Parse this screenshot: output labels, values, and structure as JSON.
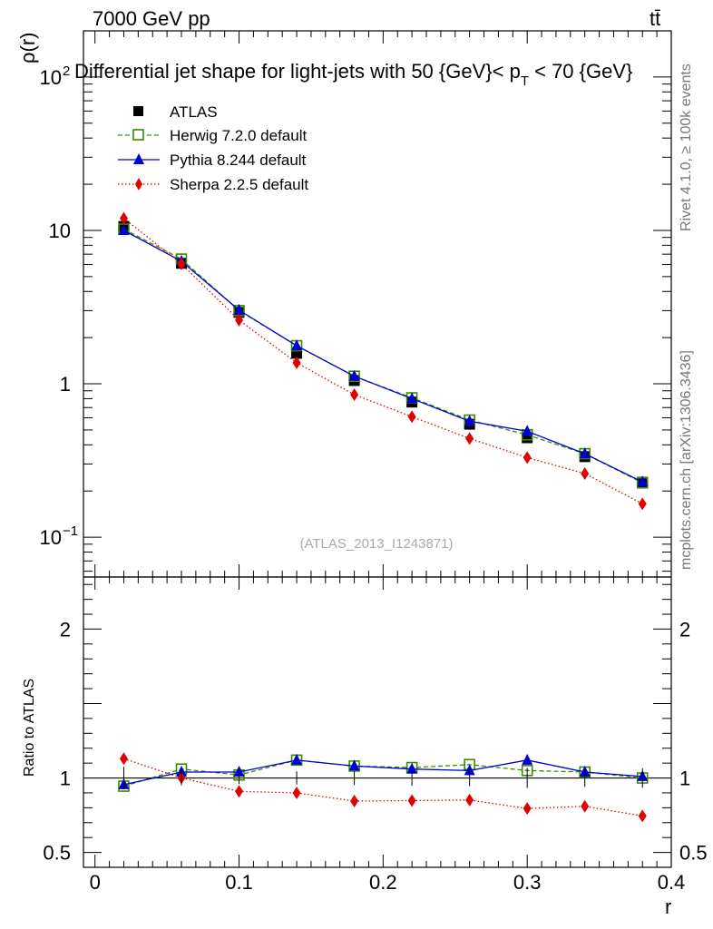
{
  "header": {
    "energy_label": "7000 GeV pp",
    "process_label": "tt̄"
  },
  "side_labels": {
    "rivet": "Rivet 4.1.0, ≥ 100k events",
    "mcplots": "mcplots.cern.ch [arXiv:1306.3436]"
  },
  "chart_data": {
    "type": "line",
    "title": "Differential jet shape for light-jets with 50 {GeV}< p_T < 70 {GeV}",
    "title_parts": {
      "main": "Differential jet shape for light-jets with 50 {GeV}< p",
      "sub": "T",
      "tail": " < 70 {GeV}"
    },
    "analysis_label": "(ATLAS_2013_I1243871)",
    "xlabel": "r",
    "ylabel": "ρ(r)",
    "ratio_ylabel": "Ratio to ATLAS",
    "xlim": [
      -0.008,
      0.4
    ],
    "ylim": [
      0.055,
      200
    ],
    "yscale": "log",
    "ratio_ylim": [
      0.4,
      2.35
    ],
    "x_ticks": [
      "0",
      "0.1",
      "0.2",
      "0.3",
      "0.4"
    ],
    "x_tick_values": [
      0,
      0.1,
      0.2,
      0.3,
      0.4
    ],
    "y_tick_labels": [
      "10",
      "10",
      "10",
      "1"
    ],
    "y_tick_exponents": [
      "2",
      "",
      "−1",
      ""
    ],
    "ratio_ticks": [
      "0.5",
      "1",
      "2"
    ],
    "ratio_tick_values": [
      0.5,
      1,
      2
    ],
    "x": [
      0.02,
      0.06,
      0.1,
      0.14,
      0.18,
      0.22,
      0.26,
      0.3,
      0.34,
      0.38
    ],
    "series": [
      {
        "name": "ATLAS",
        "color": "#000000",
        "marker": "square-filled",
        "values": [
          10.6,
          6.1,
          2.92,
          1.58,
          1.05,
          0.76,
          0.545,
          0.445,
          0.335,
          0.228
        ],
        "errors": [
          0.8,
          0.3,
          0.12,
          0.07,
          0.05,
          0.04,
          0.03,
          0.03,
          0.02,
          0.015
        ]
      },
      {
        "name": "Herwig 7.2.0 default",
        "color": "#3a8a00",
        "marker": "square-open",
        "values": [
          10.2,
          6.5,
          3.0,
          1.77,
          1.12,
          0.81,
          0.58,
          0.465,
          0.35,
          0.226
        ],
        "ratio": [
          0.945,
          1.06,
          1.02,
          1.12,
          1.08,
          1.07,
          1.09,
          1.05,
          1.04,
          1.0
        ]
      },
      {
        "name": "Pythia 8.244 default",
        "color": "#0000d0",
        "marker": "triangle-filled",
        "values": [
          10.0,
          6.3,
          3.02,
          1.77,
          1.12,
          0.8,
          0.57,
          0.49,
          0.35,
          0.229
        ],
        "ratio": [
          0.955,
          1.04,
          1.04,
          1.12,
          1.08,
          1.06,
          1.05,
          1.12,
          1.04,
          1.01
        ]
      },
      {
        "name": "Sherpa 2.2.5 default",
        "color": "#e00000",
        "marker": "diamond-filled",
        "values": [
          12.0,
          6.05,
          2.6,
          1.37,
          0.85,
          0.61,
          0.44,
          0.33,
          0.26,
          0.165
        ],
        "ratio": [
          1.13,
          1.0,
          0.91,
          0.9,
          0.845,
          0.848,
          0.852,
          0.795,
          0.81,
          0.745
        ]
      }
    ]
  }
}
